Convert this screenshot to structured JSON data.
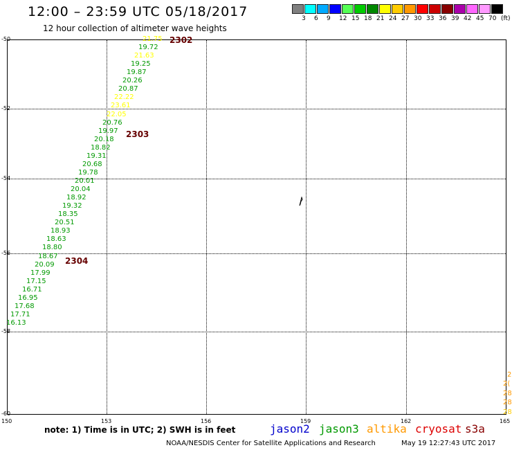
{
  "header": {
    "title": "12:00 – 23:59 UTC 05/18/2017",
    "subtitle": "12 hour collection of altimeter wave heights"
  },
  "color_scale": {
    "swatches": [
      "#808080",
      "#00ffff",
      "#00aaff",
      "#0000ff",
      "#55ff55",
      "#00cc00",
      "#008800",
      "#ffff00",
      "#ffcc00",
      "#ff9900",
      "#ff0000",
      "#cc0000",
      "#880000",
      "#aa00aa",
      "#ff66ff",
      "#ff99ff",
      "#000000"
    ],
    "labels": [
      "3",
      "6",
      "9",
      "12",
      "15",
      "18",
      "21",
      "24",
      "27",
      "30",
      "33",
      "36",
      "39",
      "42",
      "45",
      "70",
      "(ft)"
    ]
  },
  "axes": {
    "lat_labels": [
      "-50",
      "-52",
      "-54",
      "-56",
      "-58",
      "-60"
    ],
    "lon_labels": [
      "150",
      "153",
      "156",
      "159",
      "162",
      "165"
    ]
  },
  "observations": [
    {
      "text": "21.75",
      "color": "#ffff00"
    },
    {
      "text": "19.72",
      "color": "#009900"
    },
    {
      "text": "21.63",
      "color": "#ffff00"
    },
    {
      "text": "19.25",
      "color": "#009900"
    },
    {
      "text": "19.87",
      "color": "#009900"
    },
    {
      "text": "20.26",
      "color": "#009900"
    },
    {
      "text": "20.87",
      "color": "#009900"
    },
    {
      "text": "22.22",
      "color": "#ffff00"
    },
    {
      "text": "23.61",
      "color": "#ffff00"
    },
    {
      "text": "22.05",
      "color": "#ffff00"
    },
    {
      "text": "20.76",
      "color": "#009900"
    },
    {
      "text": "19.97",
      "color": "#009900"
    },
    {
      "text": "20.18",
      "color": "#009900"
    },
    {
      "text": "18.82",
      "color": "#009900"
    },
    {
      "text": "19.31",
      "color": "#009900"
    },
    {
      "text": "20.68",
      "color": "#009900"
    },
    {
      "text": "19.78",
      "color": "#009900"
    },
    {
      "text": "20.01",
      "color": "#009900"
    },
    {
      "text": "20.04",
      "color": "#009900"
    },
    {
      "text": "18.92",
      "color": "#009900"
    },
    {
      "text": "19.32",
      "color": "#009900"
    },
    {
      "text": "18.35",
      "color": "#009900"
    },
    {
      "text": "20.51",
      "color": "#009900"
    },
    {
      "text": "18.93",
      "color": "#009900"
    },
    {
      "text": "18.63",
      "color": "#009900"
    },
    {
      "text": "18.80",
      "color": "#009900"
    },
    {
      "text": "18.67",
      "color": "#009900"
    },
    {
      "text": "20.09",
      "color": "#009900"
    },
    {
      "text": "17.99",
      "color": "#009900"
    },
    {
      "text": "17.15",
      "color": "#009900"
    },
    {
      "text": "16.71",
      "color": "#009900"
    },
    {
      "text": "16.95",
      "color": "#009900"
    },
    {
      "text": "17.68",
      "color": "#009900"
    },
    {
      "text": "17.71",
      "color": "#009900"
    },
    {
      "text": "16.13",
      "color": "#009900"
    }
  ],
  "pass_labels": [
    "2302",
    "2303",
    "2304"
  ],
  "edge_values": [
    {
      "text": "2",
      "color": "#ff9900"
    },
    {
      "text": "2(",
      "color": "#ff9900"
    },
    {
      "text": "28",
      "color": "#ff9900"
    },
    {
      "text": "28",
      "color": "#ff9900"
    },
    {
      "text": "28.",
      "color": "#ffcc00"
    }
  ],
  "footer": {
    "note": "note:  1) Time is in UTC;  2) SWH is in feet",
    "satellites": [
      {
        "name": "jason2",
        "color": "#0000cc"
      },
      {
        "name": "jason3",
        "color": "#009900"
      },
      {
        "name": "altika",
        "color": "#ff9900"
      },
      {
        "name": "cryosat",
        "color": "#dd0000"
      },
      {
        "name": "s3a",
        "color": "#880000"
      }
    ],
    "credit": "NOAA/NESDIS Center for Satellite Applications and Research",
    "timestamp": "May 19 12:27:43 UTC 2017"
  }
}
